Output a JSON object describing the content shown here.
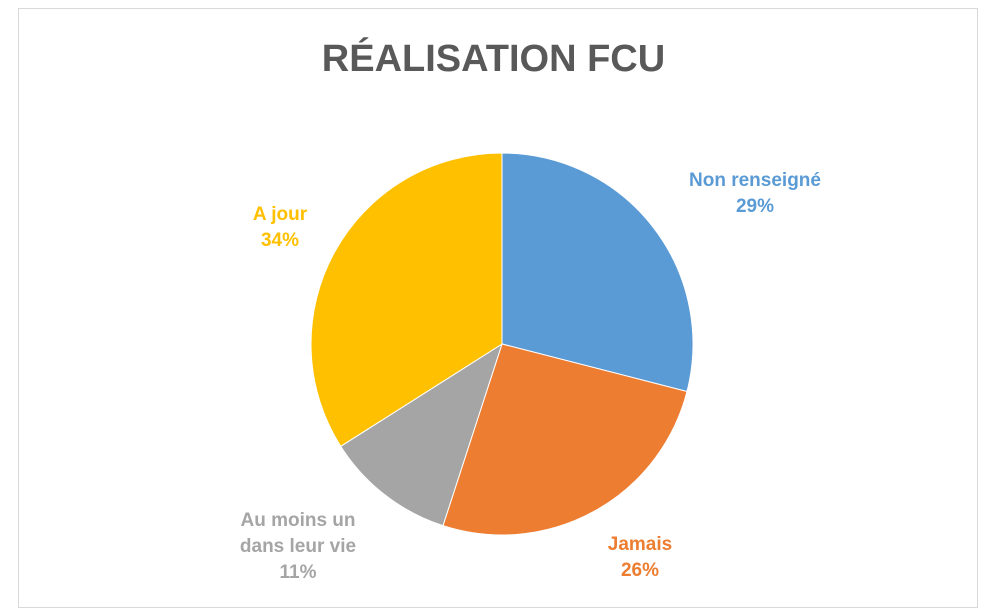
{
  "chart_data": {
    "type": "pie",
    "title": "RÉALISATION FCU",
    "categories": [
      "Non renseigné",
      "Jamais",
      "Au moins un dans leur vie",
      "A jour"
    ],
    "values": [
      29,
      26,
      11,
      34
    ],
    "value_labels": [
      "29%",
      "26%",
      "11%",
      "34%"
    ],
    "colors": [
      "#5b9bd5",
      "#ed7d31",
      "#a5a5a5",
      "#ffc000"
    ]
  }
}
